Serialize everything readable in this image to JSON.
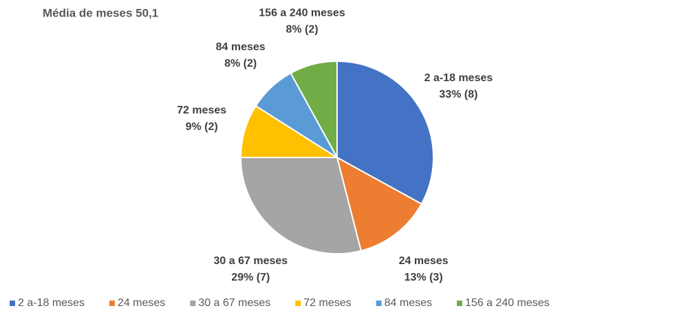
{
  "chart_data": {
    "type": "pie",
    "title": "Média de meses 50,1",
    "categories": [
      "2 a-18 meses",
      "24 meses",
      "30 a 67 meses",
      "72 meses",
      "84 meses",
      "156 a 240 meses"
    ],
    "values": [
      33,
      13,
      29,
      9,
      8,
      8
    ],
    "value_labels": [
      "33% (8)",
      "13% (3)",
      "29% (7)",
      "9% (2)",
      "8% (2)",
      "8% (2)"
    ],
    "colors": [
      "#4472c4",
      "#ed7d31",
      "#a5a5a5",
      "#ffc000",
      "#5b9bd5",
      "#70ad47"
    ],
    "legend": "bottom"
  }
}
